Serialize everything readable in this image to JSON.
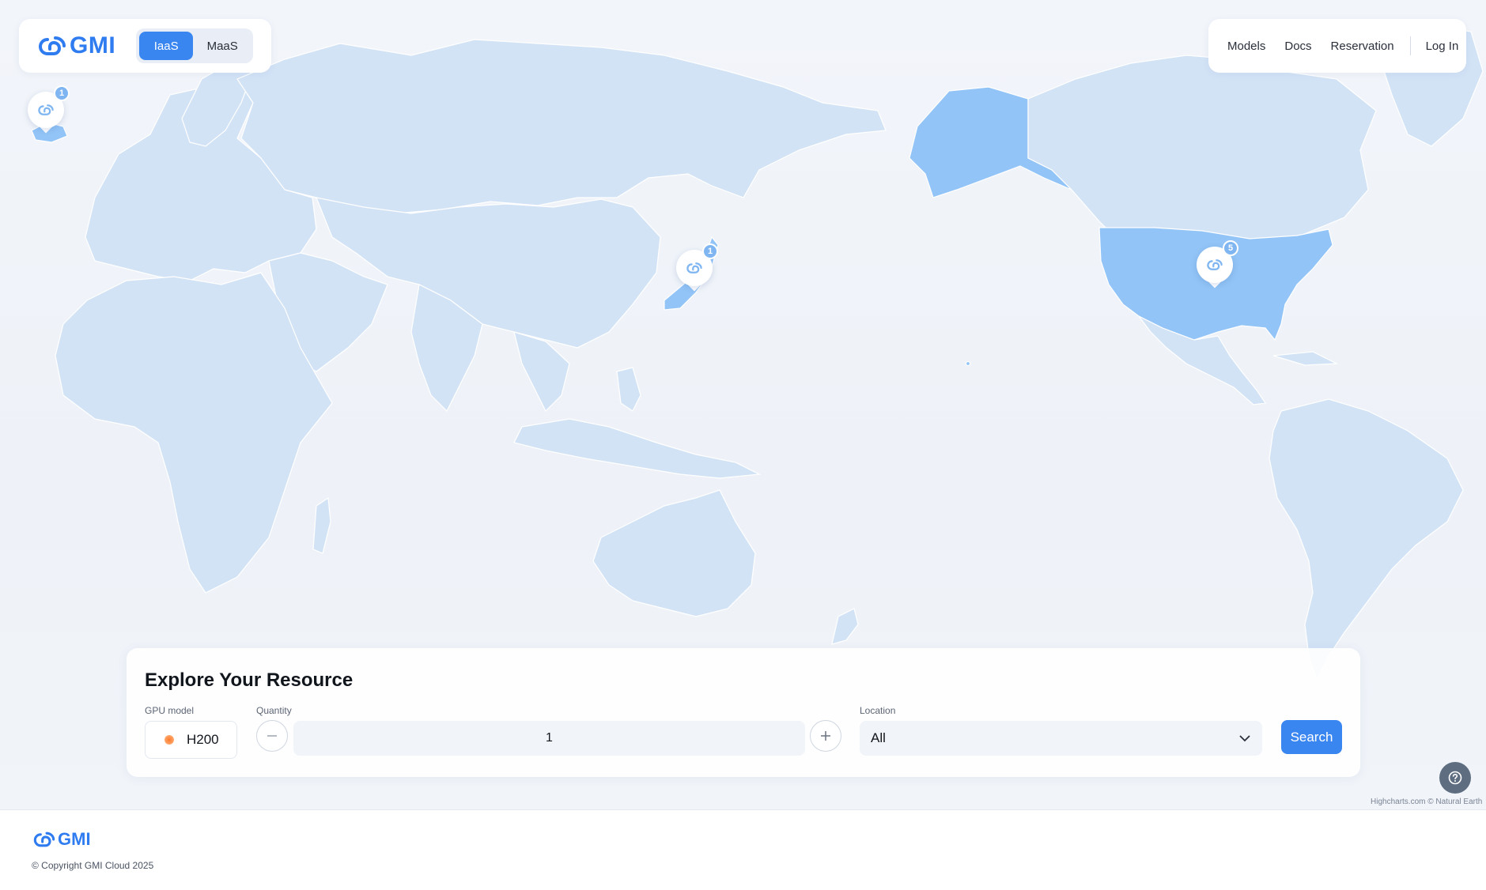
{
  "header": {
    "brand": "GMI",
    "tabs": [
      {
        "label": "IaaS",
        "active": true
      },
      {
        "label": "MaaS",
        "active": false
      }
    ],
    "nav": {
      "models": "Models",
      "docs": "Docs",
      "reservation": "Reservation",
      "login": "Log In"
    }
  },
  "map": {
    "pins": [
      {
        "name": "pin-europe",
        "count": "1"
      },
      {
        "name": "pin-japan",
        "count": "1"
      },
      {
        "name": "pin-usa",
        "count": "5"
      }
    ],
    "credit": "Highcharts.com © Natural Earth",
    "colors": {
      "land": "#d3e3f6",
      "highlighted": "#92c4f7"
    }
  },
  "explore": {
    "title": "Explore Your Resource",
    "gpu_label": "GPU model",
    "gpu_value": "H200",
    "quantity_label": "Quantity",
    "quantity_value": "1",
    "location_label": "Location",
    "location_value": "All",
    "search_label": "Search"
  },
  "footer": {
    "brand": "GMI",
    "copyright": "© Copyright GMI Cloud 2025"
  },
  "colors": {
    "accent": "#3a86f0",
    "help_button": "#5f6d80"
  }
}
